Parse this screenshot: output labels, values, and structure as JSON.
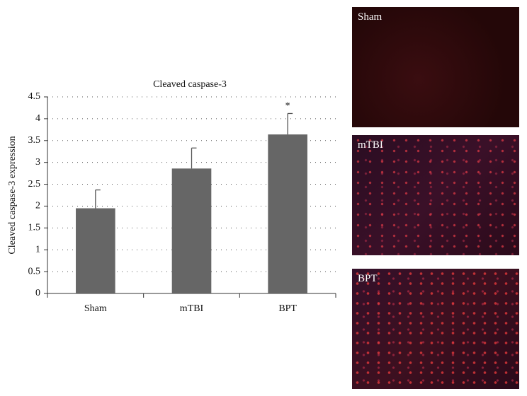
{
  "chart_data": {
    "type": "bar",
    "title": "Cleaved caspase-3",
    "y_label": "Cleaved caspase-3 expression",
    "categories": [
      "Sham",
      "mTBI",
      "BPT"
    ],
    "values": [
      1.95,
      2.86,
      3.64
    ],
    "errors": [
      0.42,
      0.47,
      0.48
    ],
    "color": "#666666",
    "ylim": [
      0,
      4.5
    ],
    "yticks": [
      0,
      0.5,
      1,
      1.5,
      2,
      2.5,
      3,
      3.5,
      4,
      4.5
    ],
    "grid": true,
    "annotations": [
      {
        "category": "BPT",
        "text": "*"
      }
    ]
  },
  "panels": [
    {
      "label": "Sham"
    },
    {
      "label": "mTBI"
    },
    {
      "label": "BPT"
    }
  ]
}
